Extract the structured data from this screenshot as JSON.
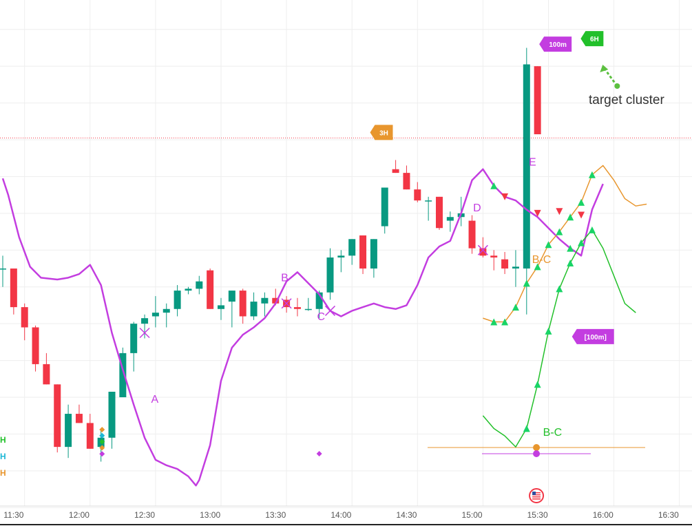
{
  "colors": {
    "up": "#089981",
    "down": "#f23645",
    "purple": "#c33de0",
    "orange": "#e8962e",
    "green": "#22c02a",
    "grid": "#eeeeee",
    "ref_line": "#f23645",
    "tri": "#19d466"
  },
  "chart_data": {
    "type": "candlestick",
    "x_ticks": [
      "11:30",
      "12:00",
      "12:30",
      "13:00",
      "13:30",
      "14:00",
      "14:30",
      "15:00",
      "15:30",
      "16:00",
      "16:30"
    ],
    "candles": [
      {
        "o": 50,
        "h": 57,
        "l": 40,
        "c": 50
      },
      {
        "o": 50,
        "h": 50,
        "l": 25,
        "c": 29
      },
      {
        "o": 29,
        "h": 31,
        "l": 11,
        "c": 18
      },
      {
        "o": 18,
        "h": 19,
        "l": -6,
        "c": -2
      },
      {
        "o": -2,
        "h": 4,
        "l": -13,
        "c": -13
      },
      {
        "o": -13,
        "h": -13,
        "l": -50,
        "c": -47
      },
      {
        "o": -47,
        "h": -24,
        "l": -53,
        "c": -29
      },
      {
        "o": -29,
        "h": -24,
        "l": -34,
        "c": -34
      },
      {
        "o": -34,
        "h": -29,
        "l": -48,
        "c": -48
      },
      {
        "o": -47,
        "h": -37,
        "l": -55,
        "c": -42
      },
      {
        "o": -42,
        "h": -17,
        "l": -48,
        "c": -17
      },
      {
        "o": -20,
        "h": 7,
        "l": -20,
        "c": 4
      },
      {
        "o": 4,
        "h": 21,
        "l": -6,
        "c": 20
      },
      {
        "o": 20,
        "h": 25,
        "l": 12,
        "c": 23
      },
      {
        "o": 24,
        "h": 35,
        "l": 18,
        "c": 26
      },
      {
        "o": 26,
        "h": 31,
        "l": 18,
        "c": 28
      },
      {
        "o": 28,
        "h": 41,
        "l": 24,
        "c": 38
      },
      {
        "o": 38,
        "h": 40,
        "l": 36,
        "c": 39
      },
      {
        "o": 39,
        "h": 46,
        "l": 36,
        "c": 43
      },
      {
        "o": 49,
        "h": 50,
        "l": 28,
        "c": 28
      },
      {
        "o": 28,
        "h": 34,
        "l": 22,
        "c": 30
      },
      {
        "o": 32,
        "h": 38,
        "l": 18,
        "c": 38
      },
      {
        "o": 38,
        "h": 39,
        "l": 20,
        "c": 24
      },
      {
        "o": 24,
        "h": 37,
        "l": 22,
        "c": 32
      },
      {
        "o": 31,
        "h": 37,
        "l": 24,
        "c": 34
      },
      {
        "o": 34,
        "h": 39,
        "l": 30,
        "c": 31
      },
      {
        "o": 33,
        "h": 35,
        "l": 26,
        "c": 29
      },
      {
        "o": 29,
        "h": 34,
        "l": 24,
        "c": 28
      },
      {
        "o": 28,
        "h": 34,
        "l": 27,
        "c": 28
      },
      {
        "o": 28,
        "h": 38,
        "l": 23,
        "c": 37
      },
      {
        "o": 37,
        "h": 61,
        "l": 33,
        "c": 56
      },
      {
        "o": 56,
        "h": 60,
        "l": 48,
        "c": 57
      },
      {
        "o": 57,
        "h": 66,
        "l": 52,
        "c": 66
      },
      {
        "o": 68,
        "h": 68,
        "l": 47,
        "c": 50
      },
      {
        "o": 50,
        "h": 66,
        "l": 45,
        "c": 66
      },
      {
        "o": 73,
        "h": 94,
        "l": 69,
        "c": 94
      },
      {
        "o": 104,
        "h": 109,
        "l": 102,
        "c": 102
      },
      {
        "o": 102,
        "h": 106,
        "l": 93,
        "c": 93
      },
      {
        "o": 93,
        "h": 97,
        "l": 86,
        "c": 87
      },
      {
        "o": 87,
        "h": 89,
        "l": 76,
        "c": 87
      },
      {
        "o": 89,
        "h": 89,
        "l": 71,
        "c": 72
      },
      {
        "o": 76,
        "h": 81,
        "l": 70,
        "c": 78
      },
      {
        "o": 78,
        "h": 89,
        "l": 73,
        "c": 80
      },
      {
        "o": 76,
        "h": 79,
        "l": 58,
        "c": 61
      },
      {
        "o": 61,
        "h": 67,
        "l": 56,
        "c": 57
      },
      {
        "o": 57,
        "h": 60,
        "l": 49,
        "c": 56
      },
      {
        "o": 55,
        "h": 59,
        "l": 47,
        "c": 50
      },
      {
        "o": 50,
        "h": 60,
        "l": 40,
        "c": 51
      },
      {
        "o": 50,
        "h": 170,
        "l": 25,
        "c": 161
      },
      {
        "o": 160,
        "h": 160,
        "l": 123,
        "c": 123
      }
    ],
    "purple_line": [
      [
        0,
        99
      ],
      [
        0.5,
        90
      ],
      [
        1.5,
        67
      ],
      [
        2.5,
        51
      ],
      [
        3.5,
        45
      ],
      [
        5,
        44
      ],
      [
        6,
        45
      ],
      [
        7,
        47
      ],
      [
        8,
        52
      ],
      [
        9,
        41
      ],
      [
        10,
        15
      ],
      [
        11,
        -5
      ],
      [
        12,
        -24
      ],
      [
        13,
        -42
      ],
      [
        14,
        -54
      ],
      [
        15,
        -57
      ],
      [
        16,
        -59
      ],
      [
        17,
        -63
      ],
      [
        17.7,
        -68
      ],
      [
        18,
        -65
      ],
      [
        19,
        -46
      ],
      [
        20,
        -11
      ],
      [
        21,
        7
      ],
      [
        22,
        14
      ],
      [
        23,
        18
      ],
      [
        24,
        23
      ],
      [
        25,
        31
      ],
      [
        26,
        43
      ],
      [
        27,
        48
      ],
      [
        28,
        42
      ],
      [
        29,
        36
      ],
      [
        30,
        27
      ],
      [
        31,
        24
      ],
      [
        32,
        27
      ],
      [
        33,
        29
      ],
      [
        34,
        31
      ],
      [
        35,
        29
      ],
      [
        36,
        28
      ],
      [
        37,
        30
      ],
      [
        38,
        41
      ],
      [
        39,
        56
      ],
      [
        40,
        62
      ],
      [
        41,
        65
      ],
      [
        42,
        80
      ],
      [
        43,
        98
      ],
      [
        44,
        104
      ],
      [
        45,
        95
      ],
      [
        46,
        89
      ],
      [
        47,
        87
      ],
      [
        48,
        82
      ],
      [
        49,
        78
      ],
      [
        50,
        72
      ],
      [
        51,
        66
      ],
      [
        52,
        61
      ],
      [
        53,
        57
      ],
      [
        54,
        82
      ],
      [
        55,
        96
      ]
    ],
    "orange_line": [
      [
        44,
        23
      ],
      [
        45,
        21
      ],
      [
        46,
        21
      ],
      [
        47,
        29
      ],
      [
        48,
        42
      ],
      [
        49,
        51
      ],
      [
        50,
        63
      ],
      [
        51,
        70
      ],
      [
        52,
        78
      ],
      [
        53,
        86
      ],
      [
        54,
        101
      ],
      [
        55,
        106
      ],
      [
        56,
        98
      ],
      [
        57,
        88
      ],
      [
        58,
        84
      ],
      [
        59,
        85
      ]
    ],
    "green_line": [
      [
        44,
        -30
      ],
      [
        45,
        -37
      ],
      [
        46,
        -41
      ],
      [
        47,
        -47
      ],
      [
        48,
        -37
      ],
      [
        49,
        -13
      ],
      [
        50,
        16
      ],
      [
        51,
        39
      ],
      [
        52,
        53
      ],
      [
        53,
        64
      ],
      [
        54,
        71
      ],
      [
        55,
        61
      ],
      [
        56,
        46
      ],
      [
        57,
        31
      ],
      [
        58,
        26
      ]
    ],
    "point_labels": [
      {
        "text": "A",
        "x": 13.6,
        "y": -23
      },
      {
        "text": "B",
        "x": 25.5,
        "y": 43
      },
      {
        "text": "C",
        "x": 28.8,
        "y": 22
      },
      {
        "text": "D",
        "x": 43.1,
        "y": 81
      },
      {
        "text": "E",
        "x": 48.2,
        "y": 106
      },
      {
        "text": "B-C",
        "x": 48.5,
        "y": 53
      },
      {
        "text": "B-C",
        "x": 49.5,
        "y": -41
      }
    ],
    "tags": [
      {
        "text": "100m",
        "bg": "#c33de0",
        "x": 49.6,
        "y": 172
      },
      {
        "text": "6H",
        "bg": "#22c02a",
        "x": 53.4,
        "y": 175
      },
      {
        "text": "3H",
        "bg": "#e8962e",
        "x": 34.1,
        "y": 124
      },
      {
        "text": "[100m]",
        "bg": "#c33de0",
        "x": 52.6,
        "y": 13
      }
    ],
    "annotation": "target cluster",
    "side_letters": [
      {
        "text": "H",
        "color": "#22c02a"
      },
      {
        "text": "H",
        "color": "#1fb8d6"
      },
      {
        "text": "H",
        "color": "#e8962e"
      }
    ],
    "ref_level": 121,
    "ylim": [
      -90,
      196
    ]
  }
}
